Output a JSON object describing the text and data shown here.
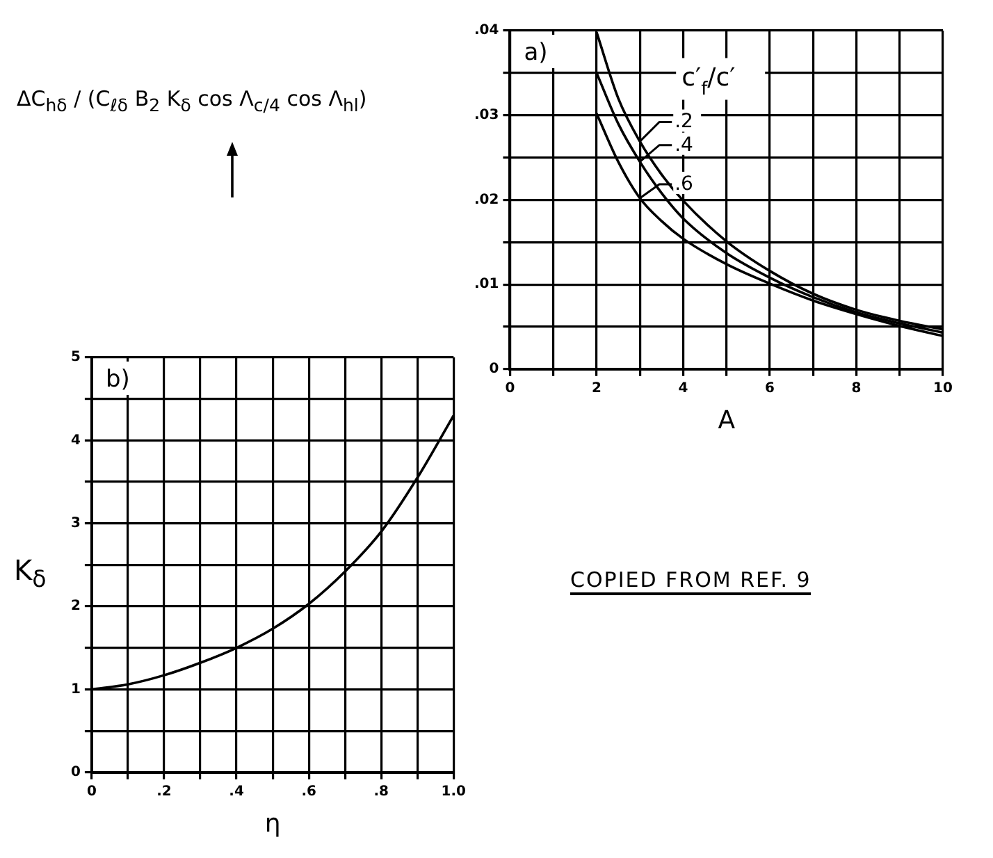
{
  "chart_data": [
    {
      "type": "line",
      "annotations": [
        "a)"
      ],
      "xlabel": "A",
      "ylabel": "ΔC$_{hδ}$ / (C$_{ℓδ}$ B$_{2}$ K$_{δ}$ cos Λ$_{c/4}$ cos Λ$_{hl}$)",
      "legend_title": "c′$_{f}$/c′",
      "x": [
        2,
        2.5,
        3,
        3.5,
        4,
        5,
        6,
        7,
        8,
        9,
        10
      ],
      "series": [
        {
          "name": ".2",
          "color": "#000000",
          "values": [
            0.0398,
            0.032,
            0.0269,
            0.023,
            0.0199,
            0.0151,
            0.0116,
            0.0089,
            0.007,
            0.0057,
            0.0047
          ]
        },
        {
          "name": ".4",
          "color": "#000000",
          "values": [
            0.035,
            0.029,
            0.0245,
            0.0208,
            0.0178,
            0.0137,
            0.0108,
            0.0085,
            0.0067,
            0.0054,
            0.0043
          ]
        },
        {
          "name": ".6",
          "color": "#000000",
          "values": [
            0.0302,
            0.0245,
            0.0202,
            0.0175,
            0.0154,
            0.0124,
            0.0101,
            0.0081,
            0.0065,
            0.0051,
            0.0039
          ]
        }
      ],
      "xlim": [
        0,
        10
      ],
      "ylim": [
        0,
        0.04
      ],
      "xticks": [
        0,
        {
          "value": 1,
          "label": null
        },
        2,
        {
          "value": 3,
          "label": null
        },
        4,
        {
          "value": 5,
          "label": null
        },
        6,
        {
          "value": 7,
          "label": null
        },
        8,
        {
          "value": 9,
          "label": null
        },
        10
      ],
      "yticks": [
        0,
        {
          "value": 0.005,
          "label": null
        },
        {
          "value": 0.01,
          "label": ".01"
        },
        {
          "value": 0.015,
          "label": null
        },
        {
          "value": 0.02,
          "label": ".02"
        },
        {
          "value": 0.025,
          "label": null
        },
        {
          "value": 0.03,
          "label": ".03"
        },
        {
          "value": 0.035,
          "label": null
        },
        {
          "value": 0.04,
          "label": ".04"
        }
      ],
      "grid": true,
      "legend": "top",
      "marker": "none",
      "line_style": "solid"
    },
    {
      "type": "line",
      "annotations": [
        "b)",
        "COPIED FROM REF. 9"
      ],
      "xlabel": "η",
      "ylabel": "K$_{δ}$",
      "x": [
        0,
        0.1,
        0.2,
        0.3,
        0.4,
        0.5,
        0.6,
        0.7,
        0.8,
        0.9,
        1.0
      ],
      "series": [
        {
          "color": "#000000",
          "values": [
            1.0,
            1.06,
            1.17,
            1.32,
            1.5,
            1.73,
            2.03,
            2.42,
            2.9,
            3.55,
            4.3
          ]
        }
      ],
      "xlim": [
        0,
        1
      ],
      "ylim": [
        0,
        5
      ],
      "xticks": [
        0,
        {
          "value": 0.1,
          "label": null
        },
        {
          "value": 0.2,
          "label": ".2"
        },
        {
          "value": 0.3,
          "label": null
        },
        {
          "value": 0.4,
          "label": ".4"
        },
        {
          "value": 0.5,
          "label": null
        },
        {
          "value": 0.6,
          "label": ".6"
        },
        {
          "value": 0.7,
          "label": null
        },
        {
          "value": 0.8,
          "label": ".8"
        },
        {
          "value": 0.9,
          "label": null
        },
        {
          "value": 1.0,
          "label": "1.0"
        }
      ],
      "yticks": [
        0,
        {
          "value": 0.5,
          "label": null
        },
        1,
        {
          "value": 1.5,
          "label": null
        },
        2,
        {
          "value": 2.5,
          "label": null
        },
        3,
        {
          "value": 3.5,
          "label": null
        },
        4,
        {
          "value": 4.5,
          "label": null
        },
        5
      ],
      "grid": true,
      "legend": false,
      "marker": "none",
      "line_style": "solid"
    }
  ]
}
